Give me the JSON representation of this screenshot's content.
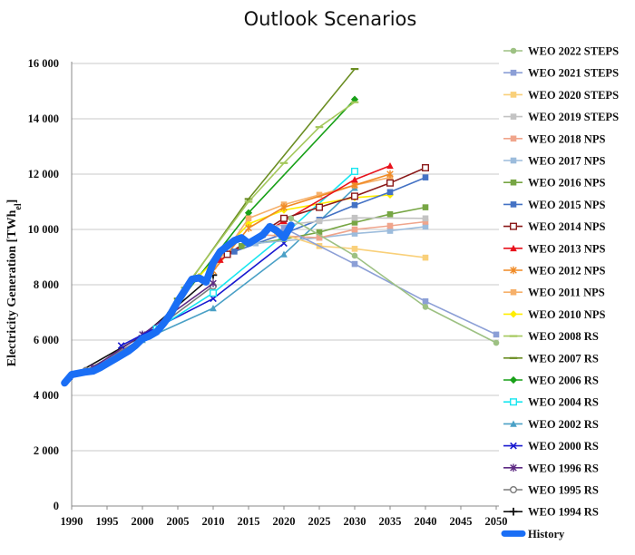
{
  "chart_data": {
    "type": "line",
    "title": "Outlook Scenarios",
    "ylabel_main": "Electricity Generation [TWh",
    "ylabel_sub": "el",
    "ylabel_end": "]",
    "xlabel": "",
    "x_ticks": [
      "1990",
      "1995",
      "2000",
      "2005",
      "2010",
      "2015",
      "2020",
      "2025",
      "2030",
      "2035",
      "2040",
      "2045",
      "2050"
    ],
    "y_ticks": [
      "0",
      "2 000",
      "4 000",
      "6 000",
      "8 000",
      "10 000",
      "12 000",
      "14 000",
      "16 000"
    ],
    "xlim": [
      1990,
      2051
    ],
    "ylim": [
      0,
      16000
    ],
    "grid": "horizontal",
    "legend_position": "right",
    "series": [
      {
        "name": "WEO 2022 STEPS",
        "color": "#9dc183",
        "marker": "circle",
        "x": [
          2021,
          2030,
          2040,
          2050
        ],
        "y": [
          10400,
          9050,
          7200,
          5900
        ]
      },
      {
        "name": "WEO 2021 STEPS",
        "color": "#8c9fd6",
        "marker": "square",
        "x": [
          2020,
          2030,
          2040,
          2050
        ],
        "y": [
          10050,
          8750,
          7400,
          6200
        ]
      },
      {
        "name": "WEO 2020 STEPS",
        "color": "#f9d07a",
        "marker": "square",
        "x": [
          2019,
          2025,
          2030,
          2040
        ],
        "y": [
          9900,
          9400,
          9300,
          8980
        ]
      },
      {
        "name": "WEO 2019 STEPS",
        "color": "#c3c3c3",
        "marker": "square",
        "x": [
          2018,
          2025,
          2030,
          2040
        ],
        "y": [
          10100,
          10300,
          10420,
          10400
        ]
      },
      {
        "name": "WEO 2018 NPS",
        "color": "#f0a58c",
        "marker": "square",
        "x": [
          2017,
          2025,
          2030,
          2035,
          2040
        ],
        "y": [
          9800,
          9700,
          10000,
          10130,
          10280
        ]
      },
      {
        "name": "WEO 2017 NPS",
        "color": "#9cbcdc",
        "marker": "square",
        "x": [
          2016,
          2025,
          2030,
          2035,
          2040
        ],
        "y": [
          9500,
          9700,
          9850,
          9950,
          10100
        ]
      },
      {
        "name": "WEO 2016 NPS",
        "color": "#77a644",
        "marker": "square",
        "x": [
          2014,
          2020,
          2025,
          2030,
          2035,
          2040
        ],
        "y": [
          9400,
          9650,
          9900,
          10250,
          10550,
          10800
        ]
      },
      {
        "name": "WEO 2015 NPS",
        "color": "#4472c4",
        "marker": "square",
        "x": [
          2013,
          2020,
          2025,
          2030,
          2035,
          2040
        ],
        "y": [
          9200,
          9850,
          10350,
          10880,
          11350,
          11880
        ]
      },
      {
        "name": "WEO 2014 NPS",
        "color": "#8b1a1a",
        "marker": "square-open",
        "x": [
          2012,
          2020,
          2025,
          2030,
          2035,
          2040
        ],
        "y": [
          9100,
          10400,
          10800,
          11200,
          11680,
          12230
        ]
      },
      {
        "name": "WEO 2013 NPS",
        "color": "#e8121c",
        "marker": "triangle",
        "x": [
          2011,
          2020,
          2030,
          2035
        ],
        "y": [
          8900,
          10300,
          11800,
          12300
        ]
      },
      {
        "name": "WEO 2012 NPS",
        "color": "#f08a24",
        "marker": "asterisk",
        "x": [
          2010,
          2015,
          2020,
          2030,
          2035
        ],
        "y": [
          8500,
          10050,
          10800,
          11600,
          12000
        ]
      },
      {
        "name": "WEO 2011 NPS",
        "color": "#f6b06a",
        "marker": "square",
        "x": [
          2009,
          2015,
          2020,
          2025,
          2030,
          2035
        ],
        "y": [
          8200,
          10400,
          10900,
          11250,
          11600,
          11880
        ]
      },
      {
        "name": "WEO 2010 NPS",
        "color": "#ffee00",
        "marker": "diamond",
        "x": [
          2008,
          2015,
          2020,
          2030,
          2035
        ],
        "y": [
          8300,
          10200,
          10700,
          11150,
          11250
        ]
      },
      {
        "name": "WEO 2008 RS",
        "color": "#a4c85c",
        "marker": "dash",
        "x": [
          2006,
          2015,
          2020,
          2025,
          2030
        ],
        "y": [
          7900,
          11000,
          12400,
          13700,
          14600
        ]
      },
      {
        "name": "WEO 2007 RS",
        "color": "#6b8e23",
        "marker": "dash",
        "x": [
          2005,
          2015,
          2030
        ],
        "y": [
          7500,
          11100,
          15800
        ]
      },
      {
        "name": "WEO 2006 RS",
        "color": "#18a018",
        "marker": "diamond",
        "x": [
          2004,
          2015,
          2030
        ],
        "y": [
          7000,
          10600,
          14700
        ]
      },
      {
        "name": "WEO 2004 RS",
        "color": "#19e6f0",
        "marker": "square-open",
        "x": [
          2002,
          2010,
          2020,
          2030
        ],
        "y": [
          6400,
          7700,
          9800,
          12100
        ]
      },
      {
        "name": "WEO 2002 RS",
        "color": "#4aa0c6",
        "marker": "triangle",
        "x": [
          2000,
          2010,
          2020,
          2030
        ],
        "y": [
          6000,
          7150,
          9100,
          11500
        ]
      },
      {
        "name": "WEO 2000 RS",
        "color": "#1a1ad0",
        "marker": "x",
        "x": [
          1997,
          2010,
          2020
        ],
        "y": [
          5800,
          7500,
          9500
        ]
      },
      {
        "name": "WEO 1996 RS",
        "color": "#5e2a83",
        "marker": "asterisk",
        "x": [
          1993,
          2000,
          2010
        ],
        "y": [
          5000,
          6200,
          8050
        ]
      },
      {
        "name": "WEO 1995 RS",
        "color": "#7a7a7a",
        "marker": "circle-open",
        "x": [
          1992,
          2000,
          2010
        ],
        "y": [
          4900,
          6050,
          7950
        ]
      },
      {
        "name": "WEO 1994 RS",
        "color": "#111111",
        "marker": "plus",
        "x": [
          1990,
          2000,
          2010
        ],
        "y": [
          4700,
          6150,
          8350
        ]
      },
      {
        "name": "History",
        "color": "#1a6ef5",
        "marker": "none",
        "thick": true,
        "x": [
          1989,
          1990,
          1991,
          1992,
          1993,
          1994,
          1995,
          1996,
          1997,
          1998,
          1999,
          2000,
          2001,
          2002,
          2003,
          2004,
          2005,
          2006,
          2007,
          2008,
          2009,
          2010,
          2011,
          2012,
          2013,
          2014,
          2015,
          2016,
          2017,
          2018,
          2019,
          2020,
          2021
        ],
        "y": [
          4450,
          4750,
          4800,
          4850,
          4880,
          5000,
          5150,
          5300,
          5450,
          5600,
          5800,
          6050,
          6150,
          6300,
          6600,
          6950,
          7400,
          7800,
          8200,
          8250,
          8100,
          8800,
          9200,
          9400,
          9600,
          9700,
          9500,
          9650,
          9800,
          10100,
          9950,
          9700,
          10150
        ]
      }
    ]
  }
}
